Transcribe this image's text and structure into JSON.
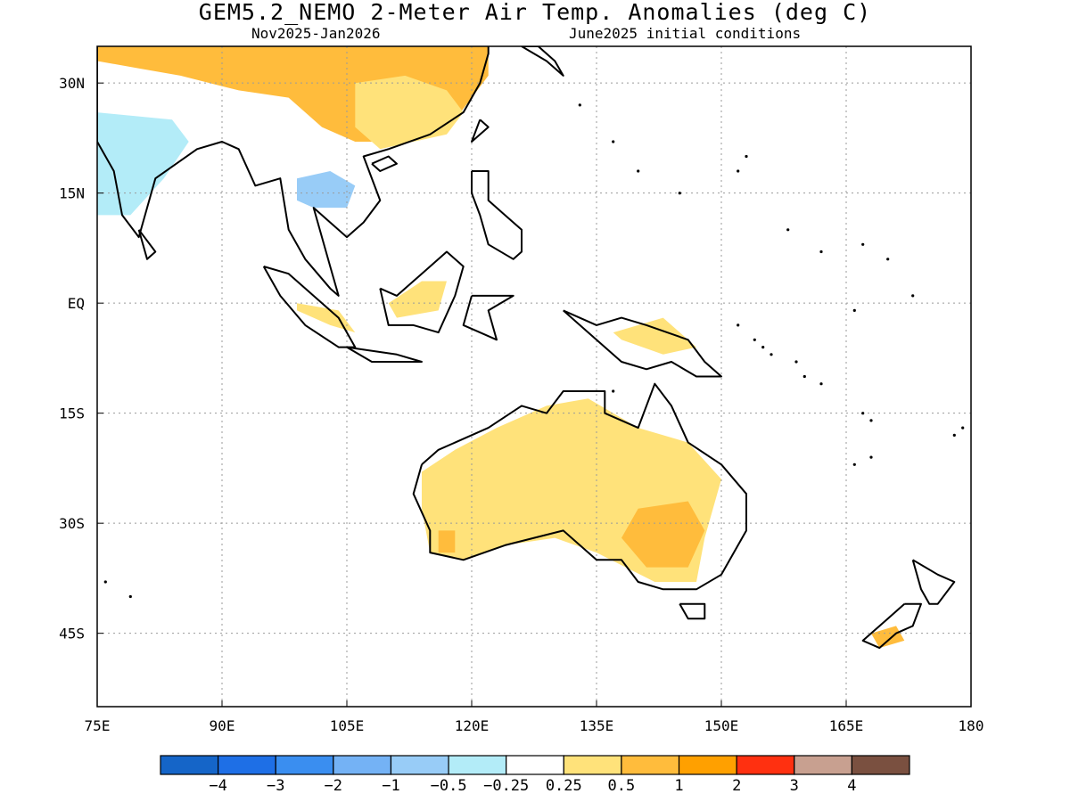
{
  "title": "GEM5.2_NEMO 2-Meter Air Temp. Anomalies (deg C)",
  "subtitle_left": "Nov2025-Jan2026",
  "subtitle_right": "June2025 initial conditions",
  "map": {
    "lon_range": [
      75,
      180
    ],
    "lat_range": [
      -55,
      35
    ],
    "grid": true,
    "x_ticks": [
      {
        "lon": 75,
        "label": "75E"
      },
      {
        "lon": 90,
        "label": "90E"
      },
      {
        "lon": 105,
        "label": "105E"
      },
      {
        "lon": 120,
        "label": "120E"
      },
      {
        "lon": 135,
        "label": "135E"
      },
      {
        "lon": 150,
        "label": "150E"
      },
      {
        "lon": 165,
        "label": "165E"
      },
      {
        "lon": 180,
        "label": "180"
      }
    ],
    "y_ticks": [
      {
        "lat": 30,
        "label": "30N"
      },
      {
        "lat": 15,
        "label": "15N"
      },
      {
        "lat": 0,
        "label": "EQ"
      },
      {
        "lat": -15,
        "label": "15S"
      },
      {
        "lat": -30,
        "label": "30S"
      },
      {
        "lat": -45,
        "label": "45S"
      }
    ]
  },
  "colorbar": {
    "colors": [
      "#1565c8",
      "#1e6fe6",
      "#3a8ef0",
      "#74b2f5",
      "#98ccf7",
      "#b3ecf8",
      "#ffffff",
      "#ffe27a",
      "#ffbc3c",
      "#ffa000",
      "#ff3010",
      "#c8a090",
      "#7a5040"
    ],
    "labels": [
      "−4",
      "−3",
      "−2",
      "−1",
      "−0.5",
      "−0.25",
      "0.25",
      "0.5",
      "1",
      "2",
      "3",
      "4"
    ]
  },
  "land_color": "#000000",
  "anomaly_regions": [
    {
      "name": "china",
      "color": "#ffbc3c",
      "points": [
        [
          75,
          35
        ],
        [
          122,
          35
        ],
        [
          122,
          31
        ],
        [
          118,
          25
        ],
        [
          112,
          22
        ],
        [
          106,
          22
        ],
        [
          102,
          24
        ],
        [
          98,
          28
        ],
        [
          92,
          29
        ],
        [
          85,
          31
        ],
        [
          80,
          32
        ],
        [
          75,
          33
        ]
      ]
    },
    {
      "name": "south-china-light",
      "color": "#ffe27a",
      "points": [
        [
          106,
          30
        ],
        [
          112,
          31
        ],
        [
          117,
          29
        ],
        [
          119,
          26
        ],
        [
          117,
          23
        ],
        [
          113,
          22
        ],
        [
          109,
          21
        ],
        [
          106,
          24
        ]
      ]
    },
    {
      "name": "india-cold",
      "color": "#98ccf7",
      "points": [
        [
          75,
          24
        ],
        [
          80,
          24
        ],
        [
          84,
          21
        ],
        [
          81,
          17
        ],
        [
          78,
          14
        ],
        [
          75,
          14
        ]
      ]
    },
    {
      "name": "india-cold-light",
      "color": "#b3ecf8",
      "points": [
        [
          75,
          26
        ],
        [
          84,
          25
        ],
        [
          86,
          22
        ],
        [
          83,
          17
        ],
        [
          79,
          12
        ],
        [
          75,
          12
        ]
      ]
    },
    {
      "name": "thailand-cold",
      "color": "#98ccf7",
      "points": [
        [
          99,
          17
        ],
        [
          103,
          18
        ],
        [
          106,
          16
        ],
        [
          105,
          13
        ],
        [
          101,
          13
        ],
        [
          99,
          14
        ]
      ]
    },
    {
      "name": "borneo",
      "color": "#ffe27a",
      "points": [
        [
          111,
          -2
        ],
        [
          116,
          -1
        ],
        [
          117,
          3
        ],
        [
          114,
          3
        ],
        [
          110,
          0
        ]
      ]
    },
    {
      "name": "sumatra",
      "color": "#ffe27a",
      "points": [
        [
          99,
          0
        ],
        [
          104,
          -1
        ],
        [
          106,
          -4
        ],
        [
          103,
          -3
        ],
        [
          99,
          -1
        ]
      ]
    },
    {
      "name": "png",
      "color": "#ffe27a",
      "points": [
        [
          137,
          -4
        ],
        [
          143,
          -2
        ],
        [
          147,
          -6
        ],
        [
          143,
          -7
        ],
        [
          138,
          -5
        ]
      ]
    },
    {
      "name": "australia-light",
      "color": "#ffe27a",
      "points": [
        [
          114,
          -23
        ],
        [
          118,
          -20
        ],
        [
          123,
          -17
        ],
        [
          129,
          -14
        ],
        [
          134,
          -13
        ],
        [
          140,
          -17
        ],
        [
          146,
          -19
        ],
        [
          150,
          -24
        ],
        [
          148,
          -32
        ],
        [
          147,
          -38
        ],
        [
          142,
          -38
        ],
        [
          135,
          -34
        ],
        [
          130,
          -32
        ],
        [
          124,
          -33
        ],
        [
          119,
          -35
        ],
        [
          115,
          -34
        ],
        [
          114,
          -28
        ]
      ]
    },
    {
      "name": "australia-warm",
      "color": "#ffbc3c",
      "points": [
        [
          140,
          -28
        ],
        [
          146,
          -27
        ],
        [
          148,
          -31
        ],
        [
          146,
          -36
        ],
        [
          141,
          -36
        ],
        [
          138,
          -32
        ]
      ]
    },
    {
      "name": "australia-warm-wa",
      "color": "#ffbc3c",
      "points": [
        [
          116,
          -31
        ],
        [
          118,
          -31
        ],
        [
          118,
          -34
        ],
        [
          116,
          -34
        ]
      ]
    },
    {
      "name": "nz-south",
      "color": "#ffbc3c",
      "points": [
        [
          168,
          -45
        ],
        [
          171,
          -44
        ],
        [
          172,
          -46
        ],
        [
          169,
          -47
        ]
      ]
    }
  ],
  "coastlines": [
    {
      "name": "australia",
      "points": [
        [
          114,
          -22
        ],
        [
          116,
          -20
        ],
        [
          122,
          -17
        ],
        [
          126,
          -14
        ],
        [
          129,
          -15
        ],
        [
          131,
          -12
        ],
        [
          136,
          -12
        ],
        [
          136,
          -15
        ],
        [
          140,
          -17
        ],
        [
          142,
          -11
        ],
        [
          144,
          -14
        ],
        [
          146,
          -19
        ],
        [
          150,
          -22
        ],
        [
          153,
          -26
        ],
        [
          153,
          -31
        ],
        [
          150,
          -37
        ],
        [
          147,
          -39
        ],
        [
          143,
          -39
        ],
        [
          140,
          -38
        ],
        [
          138,
          -35
        ],
        [
          135,
          -35
        ],
        [
          131,
          -31
        ],
        [
          124,
          -33
        ],
        [
          119,
          -35
        ],
        [
          115,
          -34
        ],
        [
          115,
          -31
        ],
        [
          113,
          -26
        ],
        [
          114,
          -22
        ]
      ]
    },
    {
      "name": "tasmania",
      "points": [
        [
          145,
          -41
        ],
        [
          148,
          -41
        ],
        [
          148,
          -43
        ],
        [
          146,
          -43
        ],
        [
          145,
          -41
        ]
      ]
    },
    {
      "name": "nz-north",
      "points": [
        [
          173,
          -35
        ],
        [
          176,
          -37
        ],
        [
          178,
          -38
        ],
        [
          176,
          -41
        ],
        [
          175,
          -41
        ],
        [
          174,
          -39
        ],
        [
          173,
          -35
        ]
      ]
    },
    {
      "name": "nz-south",
      "points": [
        [
          172,
          -41
        ],
        [
          174,
          -41
        ],
        [
          173,
          -44
        ],
        [
          171,
          -45
        ],
        [
          169,
          -47
        ],
        [
          167,
          -46
        ],
        [
          170,
          -43
        ],
        [
          172,
          -41
        ]
      ]
    },
    {
      "name": "png",
      "points": [
        [
          131,
          -1
        ],
        [
          135,
          -3
        ],
        [
          138,
          -2
        ],
        [
          141,
          -3
        ],
        [
          146,
          -5
        ],
        [
          148,
          -8
        ],
        [
          150,
          -10
        ],
        [
          147,
          -10
        ],
        [
          144,
          -8
        ],
        [
          141,
          -9
        ],
        [
          138,
          -8
        ],
        [
          134,
          -4
        ],
        [
          131,
          -1
        ]
      ]
    },
    {
      "name": "borneo",
      "points": [
        [
          109,
          2
        ],
        [
          111,
          1
        ],
        [
          114,
          4
        ],
        [
          117,
          7
        ],
        [
          119,
          5
        ],
        [
          118,
          1
        ],
        [
          116,
          -4
        ],
        [
          113,
          -3
        ],
        [
          110,
          -3
        ],
        [
          109,
          2
        ]
      ]
    },
    {
      "name": "sumatra",
      "points": [
        [
          95,
          5
        ],
        [
          98,
          4
        ],
        [
          104,
          -2
        ],
        [
          106,
          -6
        ],
        [
          104,
          -6
        ],
        [
          100,
          -3
        ],
        [
          97,
          1
        ],
        [
          95,
          5
        ]
      ]
    },
    {
      "name": "java",
      "points": [
        [
          105,
          -6
        ],
        [
          111,
          -7
        ],
        [
          114,
          -8
        ],
        [
          108,
          -8
        ],
        [
          105,
          -6
        ]
      ]
    },
    {
      "name": "sulawesi",
      "points": [
        [
          120,
          1
        ],
        [
          125,
          1
        ],
        [
          122,
          -1
        ],
        [
          123,
          -5
        ],
        [
          121,
          -4
        ],
        [
          119,
          -3
        ],
        [
          120,
          1
        ]
      ]
    },
    {
      "name": "philippines",
      "points": [
        [
          120,
          18
        ],
        [
          122,
          18
        ],
        [
          122,
          14
        ],
        [
          124,
          12
        ],
        [
          126,
          10
        ],
        [
          126,
          7
        ],
        [
          125,
          6
        ],
        [
          122,
          8
        ],
        [
          121,
          12
        ],
        [
          120,
          15
        ],
        [
          120,
          18
        ]
      ]
    },
    {
      "name": "taiwan",
      "points": [
        [
          121,
          25
        ],
        [
          122,
          24
        ],
        [
          120,
          22
        ],
        [
          121,
          25
        ]
      ]
    },
    {
      "name": "sri-lanka",
      "points": [
        [
          80,
          10
        ],
        [
          82,
          7
        ],
        [
          81,
          6
        ],
        [
          80,
          10
        ]
      ]
    },
    {
      "name": "asia-mainland",
      "points": [
        [
          75,
          35
        ],
        [
          75,
          22
        ],
        [
          77,
          18
        ],
        [
          78,
          12
        ],
        [
          80,
          9
        ],
        [
          81,
          13
        ],
        [
          82,
          17
        ],
        [
          87,
          21
        ],
        [
          90,
          22
        ],
        [
          92,
          21
        ],
        [
          94,
          16
        ],
        [
          97,
          17
        ],
        [
          98,
          10
        ],
        [
          100,
          6
        ],
        [
          103,
          2
        ],
        [
          104,
          1
        ],
        [
          103,
          5
        ],
        [
          101,
          13
        ],
        [
          103,
          11
        ],
        [
          105,
          9
        ],
        [
          107,
          11
        ],
        [
          109,
          14
        ],
        [
          107,
          20
        ],
        [
          110,
          21
        ],
        [
          115,
          23
        ],
        [
          119,
          26
        ],
        [
          121,
          30
        ],
        [
          122,
          34
        ],
        [
          122,
          35
        ]
      ]
    },
    {
      "name": "korea-japan",
      "points": [
        [
          126,
          35
        ],
        [
          128,
          35
        ],
        [
          130,
          33
        ],
        [
          131,
          31
        ],
        [
          129,
          33
        ],
        [
          126,
          35
        ]
      ]
    },
    {
      "name": "hainan",
      "points": [
        [
          108,
          19
        ],
        [
          110,
          20
        ],
        [
          111,
          19
        ],
        [
          109,
          18
        ],
        [
          108,
          19
        ]
      ]
    }
  ],
  "islands": [
    [
      133,
      27
    ],
    [
      137,
      22
    ],
    [
      140,
      18
    ],
    [
      145,
      15
    ],
    [
      158,
      10
    ],
    [
      162,
      7
    ],
    [
      167,
      8
    ],
    [
      170,
      6
    ],
    [
      173,
      1
    ],
    [
      166,
      -1
    ],
    [
      155,
      -6
    ],
    [
      159,
      -8
    ],
    [
      160,
      -10
    ],
    [
      162,
      -11
    ],
    [
      167,
      -15
    ],
    [
      168,
      -16
    ],
    [
      178,
      -18
    ],
    [
      179,
      -17
    ],
    [
      168,
      -21
    ],
    [
      166,
      -22
    ],
    [
      76,
      -38
    ],
    [
      79,
      -40
    ],
    [
      152,
      -3
    ],
    [
      154,
      -5
    ],
    [
      156,
      -7
    ],
    [
      137,
      -12
    ],
    [
      153,
      20
    ],
    [
      152,
      18
    ]
  ]
}
